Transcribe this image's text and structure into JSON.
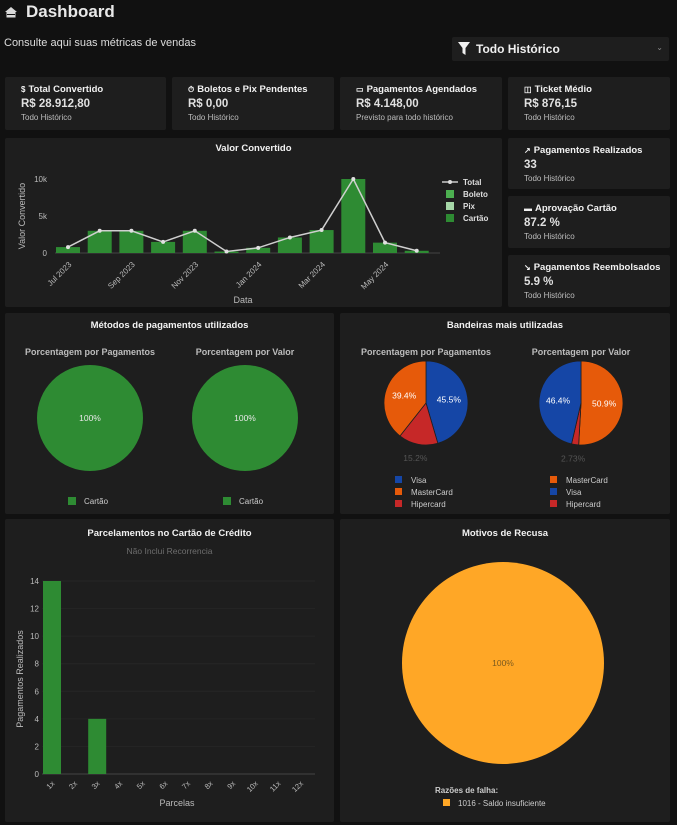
{
  "header": {
    "title": "Dashboard",
    "icon": "home-icon",
    "subtitle": "Consulte aqui suas métricas de vendas"
  },
  "filter": {
    "icon": "filter-icon",
    "selected": "Todo Histórico"
  },
  "cards": [
    {
      "icon": "dollar-icon",
      "glyph": "$",
      "title": "Total Convertido",
      "value": "R$ 28.912,80",
      "sub": "Todo Histórico"
    },
    {
      "icon": "timer-icon",
      "glyph": "⏱",
      "title": "Boletos e Pix Pendentes",
      "value": "R$ 0,00",
      "sub": "Todo Histórico"
    },
    {
      "icon": "calendar-icon",
      "glyph": "▭",
      "title": "Pagamentos Agendados",
      "value": "R$ 4.148,00",
      "sub": "Previsto para todo histórico"
    },
    {
      "icon": "ticket-icon",
      "glyph": "◫",
      "title": "Ticket Médio",
      "value": "R$ 876,15",
      "sub": "Todo Histórico"
    },
    {
      "icon": "trending-up-icon",
      "glyph": "↗",
      "title": "Pagamentos Realizados",
      "value": "33",
      "sub": "Todo Histórico"
    },
    {
      "icon": "credit-card-icon",
      "glyph": "▬",
      "title": "Aprovação Cartão",
      "value": "87.2 %",
      "sub": "Todo Histórico"
    },
    {
      "icon": "trending-down-icon",
      "glyph": "↘",
      "title": "Pagamentos Reembolsados",
      "value": "5.9 %",
      "sub": "Todo Histórico"
    }
  ],
  "colors": {
    "green": "#2e8b33",
    "boleto": "#4caf50",
    "pix": "#a5d6a7",
    "visa": "#1546a6",
    "mastercard": "#e65a0a",
    "hipercard": "#c62828",
    "recusa": "#ffa726"
  },
  "chart_data": [
    {
      "type": "bar",
      "title": "Valor Convertido",
      "xlabel": "Data",
      "ylabel": "Valor Convertido",
      "categories": [
        "Jul 2023",
        "Aug 2023",
        "Sep 2023",
        "Oct 2023",
        "Nov 2023",
        "Dec 2023",
        "Jan 2024",
        "Feb 2024",
        "Mar 2024",
        "Apr 2024",
        "May 2024",
        "Jun 2024"
      ],
      "tick_labels": [
        "Jul 2023",
        "Sep 2023",
        "Nov 2023",
        "Jan 2024",
        "Mar 2024",
        "May 2024"
      ],
      "y_ticks": [
        "0",
        "5k",
        "10k"
      ],
      "ylim": [
        0,
        10000
      ],
      "legend": [
        "Total",
        "Boleto",
        "Pix",
        "Cartão"
      ],
      "legend_position": "right",
      "series": [
        {
          "name": "Cartão",
          "values": [
            800,
            3000,
            3000,
            1500,
            3000,
            200,
            700,
            2100,
            3100,
            10000,
            1400,
            300
          ]
        },
        {
          "name": "Boleto",
          "values": [
            0,
            0,
            0,
            0,
            0,
            0,
            0,
            0,
            0,
            0,
            0,
            0
          ]
        },
        {
          "name": "Pix",
          "values": [
            0,
            0,
            0,
            0,
            0,
            0,
            0,
            0,
            0,
            0,
            0,
            0
          ]
        },
        {
          "name": "Total",
          "type": "line",
          "values": [
            800,
            3000,
            3000,
            1500,
            3000,
            200,
            700,
            2100,
            3100,
            10000,
            1400,
            300
          ]
        }
      ]
    },
    {
      "type": "pie",
      "title": "Métodos de pagamentos utilizados",
      "pies": [
        {
          "subtitle": "Porcentagem por Pagamentos",
          "labels": [
            "Cartão"
          ],
          "values": [
            100
          ],
          "text": [
            "100%"
          ]
        },
        {
          "subtitle": "Porcentagem por Valor",
          "labels": [
            "Cartão"
          ],
          "values": [
            100
          ],
          "text": [
            "100%"
          ]
        }
      ]
    },
    {
      "type": "pie",
      "title": "Bandeiras mais utilizadas",
      "pies": [
        {
          "subtitle": "Porcentagem por Pagamentos",
          "labels": [
            "Visa",
            "MasterCard",
            "Hipercard"
          ],
          "values": [
            45.5,
            39.4,
            15.2
          ],
          "text": [
            "45.5%",
            "39.4%",
            "15.2%"
          ]
        },
        {
          "subtitle": "Porcentagem por Valor",
          "labels": [
            "MasterCard",
            "Visa",
            "Hipercard"
          ],
          "values": [
            50.9,
            46.4,
            2.73
          ],
          "text": [
            "50.9%",
            "46.4%",
            "2.73%"
          ]
        }
      ]
    },
    {
      "type": "bar",
      "title": "Parcelamentos no Cartão de Crédito",
      "subtitle": "Não Inclui Recorrencia",
      "xlabel": "Parcelas",
      "ylabel": "Pagamentos Realizados",
      "categories": [
        "1x",
        "2x",
        "3x",
        "4x",
        "5x",
        "6x",
        "7x",
        "8x",
        "9x",
        "10x",
        "11x",
        "12x"
      ],
      "values": [
        14,
        0,
        4,
        0,
        0,
        0,
        0,
        0,
        0,
        0,
        0,
        0
      ],
      "y_ticks": [
        "0",
        "2",
        "4",
        "6",
        "8",
        "10",
        "12",
        "14"
      ],
      "ylim": [
        0,
        14
      ]
    },
    {
      "type": "pie",
      "title": "Motivos de Recusa",
      "legend_title": "Razões de falha:",
      "labels": [
        "1016 - Saldo insuficiente"
      ],
      "values": [
        100
      ],
      "text": [
        "100%"
      ]
    }
  ]
}
